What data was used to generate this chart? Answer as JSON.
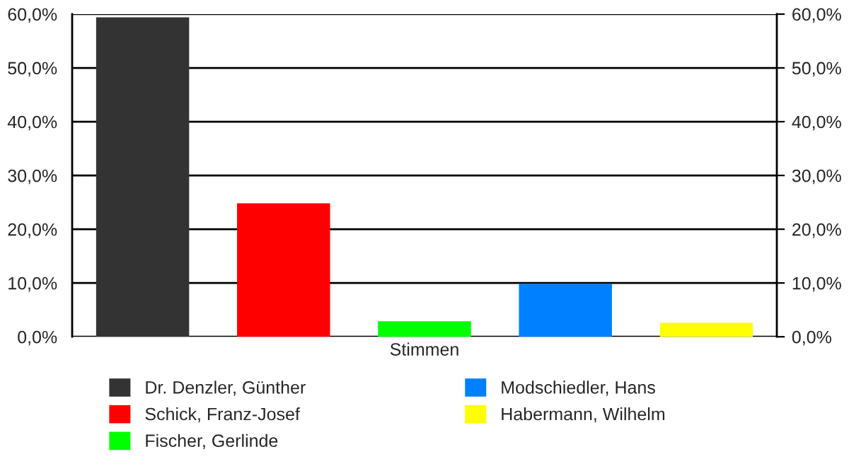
{
  "chart_data": {
    "type": "bar",
    "categories": [
      "Stimmen"
    ],
    "series": [
      {
        "name": "Dr. Denzler, Günther",
        "color": "#333333",
        "values": [
          59.4
        ]
      },
      {
        "name": "Schick, Franz-Josef",
        "color": "#ff0000",
        "values": [
          24.8
        ]
      },
      {
        "name": "Fischer, Gerlinde",
        "color": "#00ff00",
        "values": [
          2.9
        ]
      },
      {
        "name": "Modschiedler, Hans",
        "color": "#0080ff",
        "values": [
          9.9
        ]
      },
      {
        "name": "Habermann, Wilhelm",
        "color": "#ffff00",
        "values": [
          2.6
        ]
      }
    ],
    "ylim": [
      0,
      60
    ],
    "yticks": [
      {
        "value": 0,
        "label": "0,0%"
      },
      {
        "value": 10,
        "label": "10,0%"
      },
      {
        "value": 20,
        "label": "20,0%"
      },
      {
        "value": 30,
        "label": "30,0%"
      },
      {
        "value": 40,
        "label": "40,0%"
      },
      {
        "value": 50,
        "label": "50,0%"
      },
      {
        "value": 60,
        "label": "60,0%"
      }
    ],
    "grid": "y",
    "legend": "bottom"
  }
}
